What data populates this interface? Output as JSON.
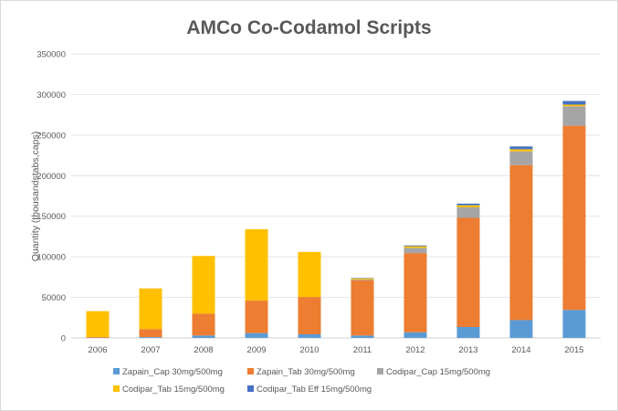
{
  "chart_data": {
    "type": "bar",
    "stacked": true,
    "title": "AMCo Co-Codamol Scripts",
    "xlabel": "",
    "ylabel": "Quantity (thousandstabs,caps)",
    "ylim": [
      0,
      350000
    ],
    "yticks": [
      "0",
      "50000",
      "100000",
      "150000",
      "200000",
      "250000",
      "300000",
      "350000"
    ],
    "grid": true,
    "legend_position": "bottom",
    "categories": [
      "2006",
      "2007",
      "2008",
      "2009",
      "2010",
      "2011",
      "2012",
      "2013",
      "2014",
      "2015"
    ],
    "series": [
      {
        "name": "Zapain_Cap 30mg/500mg",
        "color": "#5B9BD5",
        "values": [
          200,
          1000,
          3000,
          6000,
          4500,
          3000,
          7000,
          13500,
          22000,
          34500
        ]
      },
      {
        "name": "Zapain_Tab 30mg/500mg",
        "color": "#ED7D31",
        "values": [
          1000,
          10000,
          27000,
          40000,
          46000,
          68000,
          97500,
          134500,
          191000,
          227000
        ]
      },
      {
        "name": "Codipar_Cap 15mg/500mg",
        "color": "#A5A5A5",
        "values": [
          0,
          0,
          0,
          0,
          0,
          1000,
          6500,
          13000,
          17000,
          24000
        ]
      },
      {
        "name": "Codipar_Tab 15mg/500mg",
        "color": "#FFC000",
        "values": [
          31800,
          50000,
          71000,
          88000,
          55500,
          1500,
          2000,
          2500,
          2500,
          2000
        ]
      },
      {
        "name": "Codipar_Tab Eff 15mg/500mg",
        "color": "#4472C4",
        "values": [
          0,
          0,
          0,
          0,
          0,
          500,
          1000,
          2000,
          3500,
          4500
        ]
      }
    ]
  }
}
